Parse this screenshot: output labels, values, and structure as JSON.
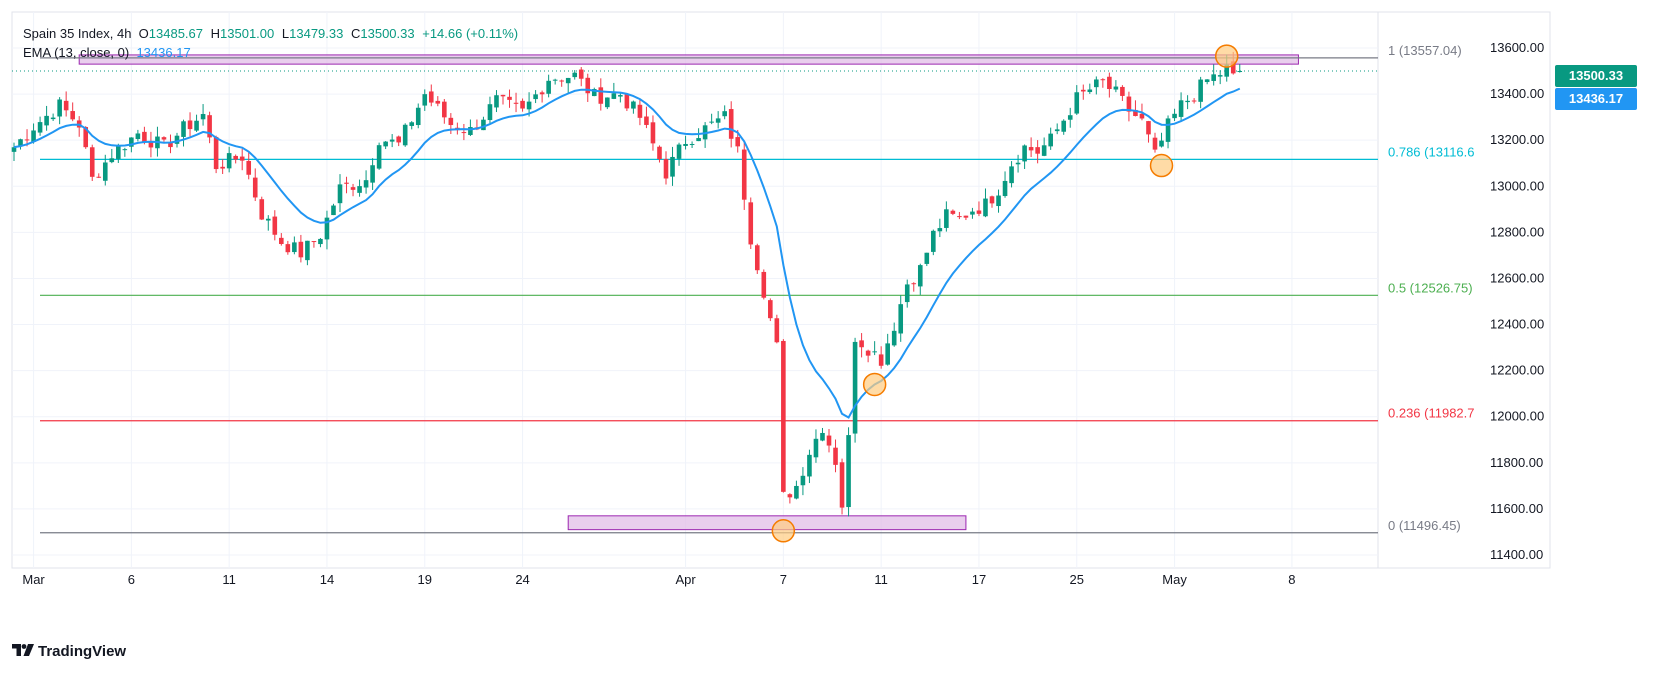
{
  "legend": {
    "symbol": "Spain 35 Index, 4h",
    "open_label": "O",
    "open": "13485.67",
    "high_label": "H",
    "high": "13501.00",
    "low_label": "L",
    "low": "13479.33",
    "close_label": "C",
    "close": "13500.33",
    "change": "+14.66 (+0.11%)",
    "ema_label": "EMA (13, close, 0)",
    "ema_value": "13436.17"
  },
  "price_tags": {
    "last_price": "13500.33",
    "ema_price": "13436.17"
  },
  "colors": {
    "up": "#089981",
    "down": "#f23645",
    "ema": "#2196f3",
    "fib_1": "#787b86",
    "fib_0786": "#00bcd4",
    "fib_05": "#4caf50",
    "fib_0236": "#f23645",
    "fib_0": "#787b86",
    "zone_fill": "#e1bee7",
    "zone_stroke": "#9c27b0",
    "marker_fill": "#ffcc80",
    "marker_stroke": "#f57c00"
  },
  "brand": "TradingView",
  "chart_data": {
    "type": "candlestick",
    "title": "Spain 35 Index, 4h",
    "ylim": [
      11400,
      13640
    ],
    "y_ticks": [
      "11400.00",
      "11600.00",
      "11800.00",
      "12000.00",
      "12200.00",
      "12400.00",
      "12600.00",
      "12800.00",
      "13000.00",
      "13200.00",
      "13400.00",
      "13600.00"
    ],
    "x_ticks": [
      {
        "label": "Mar",
        "index": 3
      },
      {
        "label": "6",
        "index": 18
      },
      {
        "label": "11",
        "index": 33
      },
      {
        "label": "14",
        "index": 48
      },
      {
        "label": "19",
        "index": 63
      },
      {
        "label": "24",
        "index": 78
      },
      {
        "label": "Apr",
        "index": 103
      },
      {
        "label": "7",
        "index": 118
      },
      {
        "label": "11",
        "index": 133
      },
      {
        "label": "17",
        "index": 148
      },
      {
        "label": "25",
        "index": 163
      },
      {
        "label": "May",
        "index": 178
      },
      {
        "label": "8",
        "index": 196
      }
    ],
    "fib_levels": [
      {
        "ratio": "1",
        "price": 13557.04,
        "label": "1 (13557.04)"
      },
      {
        "ratio": "0.786",
        "price": 13116.6,
        "label": "0.786 (13116.6"
      },
      {
        "ratio": "0.5",
        "price": 12526.75,
        "label": "0.5 (12526.75)"
      },
      {
        "ratio": "0.236",
        "price": 11982.7,
        "label": "0.236 (11982.7"
      },
      {
        "ratio": "0",
        "price": 11496.45,
        "label": "0 (11496.45)"
      }
    ],
    "zones": [
      {
        "from_index": 10,
        "to_index": 197,
        "low": 13530,
        "high": 13570
      },
      {
        "from_index": 85,
        "to_index": 146,
        "low": 11510,
        "high": 11570
      }
    ],
    "markers": [
      {
        "index": 118,
        "price": 11505
      },
      {
        "index": 132,
        "price": 12140
      },
      {
        "index": 176,
        "price": 13090
      },
      {
        "index": 186,
        "price": 13565
      }
    ],
    "anchors": [
      [
        0,
        13170
      ],
      [
        3,
        13260
      ],
      [
        7,
        13350
      ],
      [
        10,
        13270
      ],
      [
        12,
        13030
      ],
      [
        15,
        13140
      ],
      [
        19,
        13230
      ],
      [
        23,
        13170
      ],
      [
        26,
        13250
      ],
      [
        29,
        13310
      ],
      [
        31,
        13090
      ],
      [
        35,
        13130
      ],
      [
        38,
        12880
      ],
      [
        41,
        12760
      ],
      [
        44,
        12710
      ],
      [
        47,
        12790
      ],
      [
        50,
        12990
      ],
      [
        54,
        13030
      ],
      [
        56,
        13210
      ],
      [
        59,
        13180
      ],
      [
        63,
        13400
      ],
      [
        67,
        13270
      ],
      [
        70,
        13240
      ],
      [
        74,
        13370
      ],
      [
        78,
        13320
      ],
      [
        82,
        13470
      ],
      [
        86,
        13480
      ],
      [
        89,
        13390
      ],
      [
        93,
        13400
      ],
      [
        96,
        13300
      ],
      [
        100,
        13060
      ],
      [
        103,
        13200
      ],
      [
        106,
        13250
      ],
      [
        109,
        13300
      ],
      [
        111,
        13150
      ],
      [
        113,
        12780
      ],
      [
        115,
        12550
      ],
      [
        117,
        12300
      ],
      [
        118,
        11650
      ],
      [
        120,
        11700
      ],
      [
        122,
        11850
      ],
      [
        124,
        11960
      ],
      [
        126,
        11810
      ],
      [
        127,
        11620
      ],
      [
        128,
        11900
      ],
      [
        129,
        12350
      ],
      [
        131,
        12300
      ],
      [
        133,
        12250
      ],
      [
        135,
        12400
      ],
      [
        137,
        12580
      ],
      [
        139,
        12640
      ],
      [
        141,
        12790
      ],
      [
        143,
        12870
      ],
      [
        145,
        12860
      ],
      [
        147,
        12900
      ],
      [
        149,
        12920
      ],
      [
        151,
        12990
      ],
      [
        153,
        13100
      ],
      [
        155,
        13170
      ],
      [
        157,
        13150
      ],
      [
        159,
        13200
      ],
      [
        161,
        13290
      ],
      [
        163,
        13380
      ],
      [
        165,
        13420
      ],
      [
        167,
        13450
      ],
      [
        169,
        13400
      ],
      [
        171,
        13330
      ],
      [
        173,
        13280
      ],
      [
        175,
        13130
      ],
      [
        177,
        13260
      ],
      [
        179,
        13350
      ],
      [
        181,
        13400
      ],
      [
        183,
        13460
      ],
      [
        185,
        13490
      ],
      [
        186,
        13510
      ],
      [
        187,
        13470
      ],
      [
        188,
        13500
      ]
    ]
  }
}
